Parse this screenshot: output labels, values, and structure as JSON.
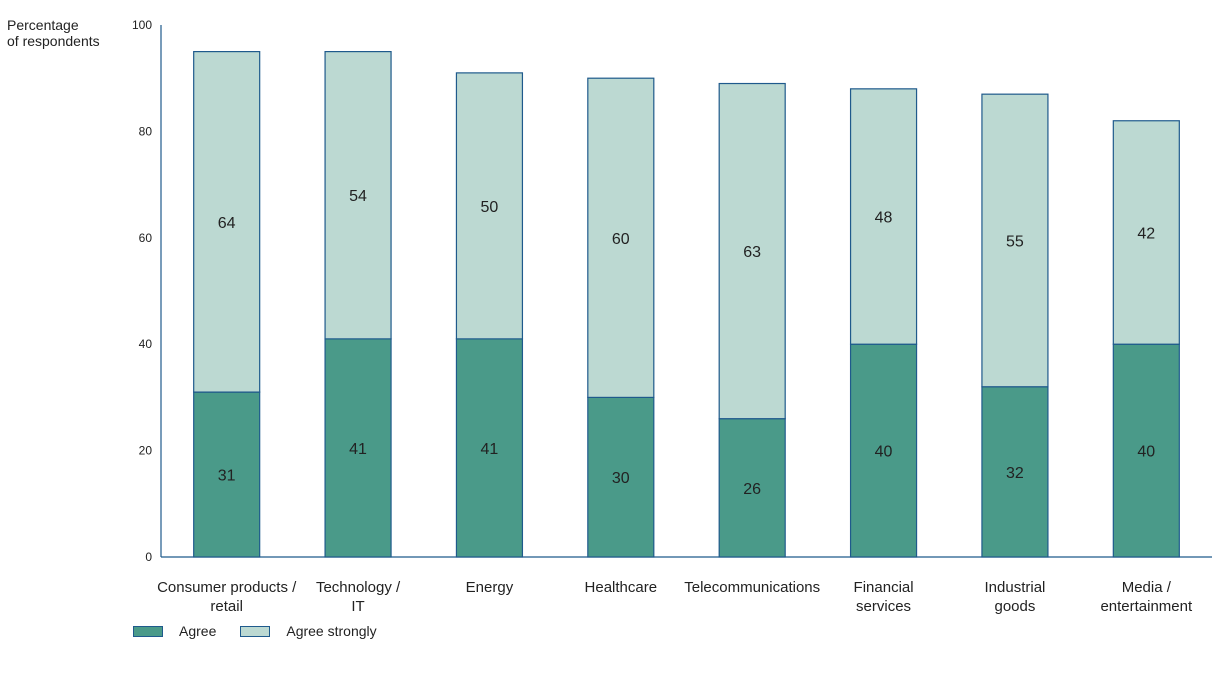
{
  "chart_data": {
    "type": "bar",
    "stacked": true,
    "ylabel_lines": [
      "Percentage",
      "of respondents"
    ],
    "ylim": [
      0,
      100
    ],
    "yticks": [
      0,
      20,
      40,
      60,
      80,
      100
    ],
    "grid": false,
    "legend_position": "bottom-left",
    "categories": [
      [
        "Consumer products /",
        "retail"
      ],
      [
        "Technology /",
        "IT"
      ],
      [
        "Energy"
      ],
      [
        "Healthcare"
      ],
      [
        "Telecommunications"
      ],
      [
        "Financial",
        "services"
      ],
      [
        "Industrial",
        "goods"
      ],
      [
        "Media /",
        "entertainment"
      ]
    ],
    "series": [
      {
        "name": "Agree",
        "color": "#4a9a89",
        "values": [
          31,
          41,
          41,
          30,
          26,
          40,
          32,
          40
        ]
      },
      {
        "name": "Agree strongly",
        "color": "#bcd9d2",
        "values": [
          64,
          54,
          50,
          60,
          63,
          48,
          55,
          42
        ]
      }
    ],
    "border_color": "#1f5a8c"
  }
}
